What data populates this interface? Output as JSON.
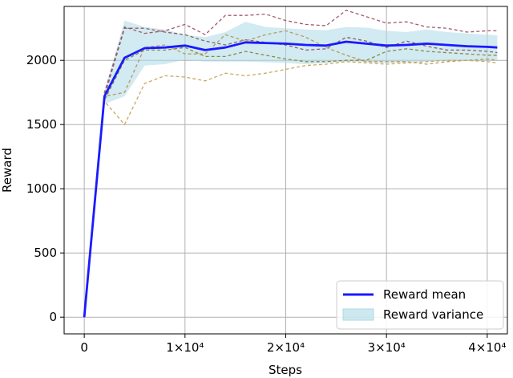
{
  "chart_data": {
    "type": "line",
    "xlabel": "Steps",
    "ylabel": "Reward",
    "xlim": [
      -2000,
      42000
    ],
    "ylim": [
      -130,
      2420
    ],
    "grid": true,
    "legend_position": "bottom-right",
    "x_ticks": [
      {
        "value": 0,
        "label": "0"
      },
      {
        "value": 10000,
        "label": "1×10⁴"
      },
      {
        "value": 20000,
        "label": "2×10⁴"
      },
      {
        "value": 30000,
        "label": "3×10⁴"
      },
      {
        "value": 40000,
        "label": "4×10⁴"
      }
    ],
    "y_ticks": [
      {
        "value": 0,
        "label": "0"
      },
      {
        "value": 500,
        "label": "500"
      },
      {
        "value": 1000,
        "label": "1000"
      },
      {
        "value": 1500,
        "label": "1500"
      },
      {
        "value": 2000,
        "label": "2000"
      }
    ],
    "x": [
      0,
      2000,
      4000,
      6000,
      8000,
      10000,
      12000,
      14000,
      16000,
      18000,
      20000,
      22000,
      24000,
      26000,
      28000,
      30000,
      32000,
      34000,
      36000,
      38000,
      40000,
      41000
    ],
    "mean": {
      "name": "Reward mean",
      "color": "#1a1aff",
      "values": [
        0,
        1720,
        2020,
        2095,
        2100,
        2115,
        2080,
        2100,
        2140,
        2135,
        2130,
        2120,
        2115,
        2145,
        2130,
        2115,
        2120,
        2130,
        2120,
        2110,
        2105,
        2100
      ]
    },
    "variance": {
      "name": "Reward variance",
      "color": "#add8e6",
      "upper": [
        0,
        1760,
        2310,
        2260,
        2240,
        2200,
        2180,
        2220,
        2300,
        2260,
        2250,
        2240,
        2235,
        2260,
        2255,
        2230,
        2220,
        2240,
        2220,
        2210,
        2200,
        2195
      ],
      "lower": [
        0,
        1660,
        1720,
        1960,
        1970,
        2005,
        1990,
        1990,
        1990,
        1985,
        1980,
        1970,
        1980,
        1990,
        1985,
        1980,
        1985,
        1990,
        1995,
        1995,
        2000,
        2000
      ]
    },
    "runs": [
      {
        "color": "#a05a70",
        "values": [
          0,
          1750,
          2260,
          2210,
          2230,
          2280,
          2200,
          2350,
          2350,
          2360,
          2310,
          2280,
          2270,
          2390,
          2340,
          2290,
          2300,
          2260,
          2250,
          2220,
          2230,
          2230
        ]
      },
      {
        "color": "#8d5e66",
        "values": [
          0,
          1720,
          2250,
          2250,
          2220,
          2200,
          2150,
          2120,
          2160,
          2140,
          2120,
          2080,
          2090,
          2180,
          2150,
          2100,
          2150,
          2110,
          2080,
          2080,
          2070,
          2060
        ]
      },
      {
        "color": "#8a8a3c",
        "values": [
          0,
          1690,
          2000,
          2080,
          2080,
          2100,
          2030,
          2030,
          2070,
          2040,
          2010,
          1990,
          1990,
          2000,
          2000,
          2070,
          2090,
          2070,
          2060,
          2050,
          2040,
          2040
        ]
      },
      {
        "color": "#b89a5c",
        "values": [
          0,
          1720,
          1750,
          2100,
          2120,
          2050,
          2050,
          2200,
          2150,
          2200,
          2230,
          2180,
          2100,
          2040,
          1990,
          1990,
          1990,
          1970,
          1990,
          2000,
          2010,
          2000
        ]
      },
      {
        "color": "#c8a860",
        "values": [
          0,
          1680,
          1500,
          1820,
          1880,
          1870,
          1840,
          1900,
          1880,
          1900,
          1930,
          1960,
          1970,
          1990,
          1980,
          1970,
          1980,
          1990,
          2000,
          2000,
          1990,
          1980
        ]
      }
    ]
  }
}
